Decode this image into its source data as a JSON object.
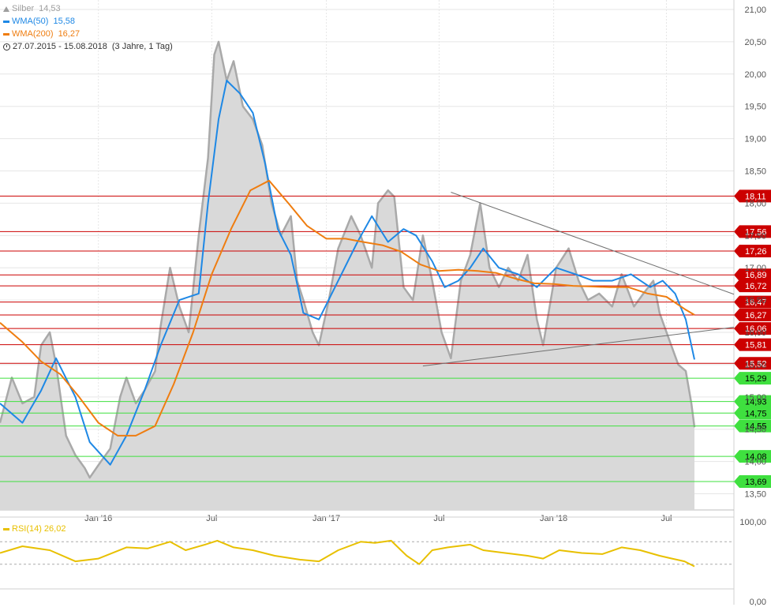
{
  "legend": {
    "instrument_name": "Silber",
    "instrument_value": "14,53",
    "wma50_label": "WMA(50)",
    "wma50_value": "15,58",
    "wma200_label": "WMA(200)",
    "wma200_value": "16,27",
    "range_text": "27.07.2015 - 15.08.2018",
    "range_detail": "(3 Jahre, 1 Tag)"
  },
  "rsi_legend": {
    "label": "RSI(14)",
    "value": "26,02"
  },
  "colors": {
    "price_fill": "#c9c9c9",
    "price_line": "#a9a9a9",
    "wma50": "#1e88e5",
    "wma200": "#ef7d10",
    "resistance": "#cc0000",
    "support": "#22cc22",
    "rsi": "#e8c000"
  },
  "icons": {
    "instrument": "triangle-icon",
    "range": "clock-icon"
  },
  "chart_data": {
    "type": "line",
    "ylim": [
      13.25,
      21.0
    ],
    "y_ticks": [
      "21,00",
      "20,50",
      "20,00",
      "19,50",
      "19,00",
      "18,50",
      "18,00",
      "17,50",
      "17,00",
      "16,50",
      "16,00",
      "15,50",
      "15,00",
      "14,50",
      "14,00",
      "13,50"
    ],
    "x_ticks": [
      "Jan '16",
      "Jul",
      "Jan '17",
      "Jul",
      "Jan '18",
      "Jul"
    ],
    "series": [
      {
        "name": "Silber",
        "style": "area",
        "x": [
          "2015-07-27",
          "2015-08-15",
          "2015-09-01",
          "2015-09-20",
          "2015-10-01",
          "2015-10-15",
          "2015-10-25",
          "2015-11-10",
          "2015-11-25",
          "2015-12-10",
          "2015-12-18",
          "2016-01-05",
          "2016-01-20",
          "2016-02-05",
          "2016-02-15",
          "2016-03-01",
          "2016-03-15",
          "2016-04-01",
          "2016-04-10",
          "2016-04-25",
          "2016-05-10",
          "2016-05-25",
          "2016-06-10",
          "2016-06-25",
          "2016-07-05",
          "2016-07-12",
          "2016-07-25",
          "2016-08-05",
          "2016-08-20",
          "2016-09-05",
          "2016-09-20",
          "2016-10-05",
          "2016-10-20",
          "2016-11-05",
          "2016-11-15",
          "2016-11-25",
          "2016-12-10",
          "2016-12-20",
          "2017-01-05",
          "2017-01-20",
          "2017-02-10",
          "2017-02-25",
          "2017-03-15",
          "2017-03-25",
          "2017-04-10",
          "2017-04-20",
          "2017-05-05",
          "2017-05-20",
          "2017-06-05",
          "2017-06-20",
          "2017-07-05",
          "2017-07-20",
          "2017-08-05",
          "2017-08-20",
          "2017-09-05",
          "2017-09-20",
          "2017-10-05",
          "2017-10-20",
          "2017-11-05",
          "2017-11-20",
          "2017-12-05",
          "2017-12-15",
          "2018-01-05",
          "2018-01-25",
          "2018-02-10",
          "2018-02-25",
          "2018-03-15",
          "2018-04-05",
          "2018-04-20",
          "2018-05-10",
          "2018-05-25",
          "2018-06-10",
          "2018-06-20",
          "2018-07-05",
          "2018-07-20",
          "2018-08-01",
          "2018-08-10",
          "2018-08-15"
        ],
        "values": [
          14.6,
          15.3,
          14.9,
          15.0,
          15.8,
          16.0,
          15.5,
          14.4,
          14.1,
          13.9,
          13.75,
          14.0,
          14.2,
          15.0,
          15.3,
          14.9,
          15.1,
          15.4,
          16.1,
          17.0,
          16.4,
          16.0,
          17.5,
          18.7,
          20.3,
          20.5,
          19.9,
          20.2,
          19.5,
          19.3,
          18.9,
          18.0,
          17.5,
          17.8,
          16.8,
          16.5,
          16.0,
          15.8,
          16.5,
          17.3,
          17.8,
          17.5,
          17.0,
          18.0,
          18.2,
          18.1,
          16.7,
          16.5,
          17.5,
          16.8,
          16.0,
          15.6,
          16.8,
          17.2,
          18.0,
          17.0,
          16.7,
          17.0,
          16.8,
          17.2,
          16.2,
          15.8,
          17.0,
          17.3,
          16.8,
          16.5,
          16.6,
          16.4,
          16.9,
          16.4,
          16.6,
          16.8,
          16.3,
          15.9,
          15.5,
          15.4,
          14.9,
          14.53
        ]
      },
      {
        "name": "WMA(50)",
        "style": "line",
        "x": [
          "2015-07-27",
          "2015-09-01",
          "2015-10-01",
          "2015-10-25",
          "2015-11-25",
          "2015-12-18",
          "2016-01-20",
          "2016-02-15",
          "2016-03-15",
          "2016-04-10",
          "2016-05-10",
          "2016-06-10",
          "2016-06-25",
          "2016-07-12",
          "2016-07-25",
          "2016-08-15",
          "2016-09-05",
          "2016-09-25",
          "2016-10-15",
          "2016-11-05",
          "2016-11-25",
          "2016-12-20",
          "2017-01-20",
          "2017-02-20",
          "2017-03-15",
          "2017-04-10",
          "2017-05-05",
          "2017-05-25",
          "2017-06-20",
          "2017-07-10",
          "2017-08-01",
          "2017-08-20",
          "2017-09-10",
          "2017-10-05",
          "2017-11-05",
          "2017-12-05",
          "2018-01-05",
          "2018-02-05",
          "2018-03-05",
          "2018-04-05",
          "2018-05-05",
          "2018-06-05",
          "2018-06-25",
          "2018-07-15",
          "2018-08-01",
          "2018-08-15"
        ],
        "values": [
          14.9,
          14.6,
          15.1,
          15.6,
          15.0,
          14.3,
          13.95,
          14.4,
          15.1,
          15.8,
          16.5,
          16.6,
          18.0,
          19.3,
          19.9,
          19.7,
          19.4,
          18.6,
          17.6,
          17.2,
          16.3,
          16.2,
          16.8,
          17.4,
          17.8,
          17.4,
          17.6,
          17.5,
          17.1,
          16.7,
          16.8,
          17.0,
          17.3,
          17.0,
          16.9,
          16.7,
          17.0,
          16.9,
          16.8,
          16.8,
          16.9,
          16.7,
          16.8,
          16.6,
          16.2,
          15.58
        ]
      },
      {
        "name": "WMA(200)",
        "style": "line",
        "x": [
          "2015-07-27",
          "2015-09-01",
          "2015-10-01",
          "2015-11-01",
          "2015-12-01",
          "2016-01-01",
          "2016-02-01",
          "2016-03-01",
          "2016-04-01",
          "2016-05-01",
          "2016-06-01",
          "2016-07-01",
          "2016-08-01",
          "2016-09-01",
          "2016-10-01",
          "2016-11-01",
          "2016-12-01",
          "2017-01-01",
          "2017-02-01",
          "2017-03-01",
          "2017-04-01",
          "2017-05-01",
          "2017-06-01",
          "2017-07-01",
          "2017-08-01",
          "2017-09-01",
          "2017-10-01",
          "2017-11-01",
          "2017-12-01",
          "2018-01-01",
          "2018-02-01",
          "2018-03-01",
          "2018-04-01",
          "2018-05-01",
          "2018-06-01",
          "2018-07-01",
          "2018-08-01",
          "2018-08-15"
        ],
        "values": [
          16.15,
          15.85,
          15.55,
          15.35,
          15.0,
          14.6,
          14.4,
          14.4,
          14.55,
          15.2,
          16.0,
          16.9,
          17.6,
          18.2,
          18.35,
          18.0,
          17.65,
          17.45,
          17.45,
          17.4,
          17.35,
          17.25,
          17.05,
          16.95,
          16.97,
          16.95,
          16.92,
          16.83,
          16.76,
          16.75,
          16.72,
          16.71,
          16.7,
          16.7,
          16.6,
          16.55,
          16.35,
          16.27
        ]
      }
    ],
    "levels": {
      "resistance": [
        "18,11",
        "17,56",
        "17,26",
        "16,89",
        "16,72",
        "16,47",
        "16,27",
        "16,06",
        "15,81",
        "15,52"
      ],
      "support": [
        "15,29",
        "14,93",
        "14,75",
        "14,55",
        "14,08",
        "13,69"
      ]
    },
    "level_values": {
      "resistance": [
        18.11,
        17.56,
        17.26,
        16.89,
        16.72,
        16.47,
        16.27,
        16.06,
        15.81,
        15.52
      ],
      "support": [
        15.29,
        14.93,
        14.75,
        14.55,
        14.08,
        13.69
      ]
    },
    "trendlines": [
      {
        "x": [
          "2017-07-20",
          "2018-08-15"
        ],
        "values": [
          18.17,
          16.59
        ]
      },
      {
        "x": [
          "2017-06-05",
          "2018-08-15"
        ],
        "values": [
          15.48,
          16.08
        ]
      }
    ],
    "rsi": {
      "ylim": [
        0,
        100
      ],
      "y_ticks": [
        "100,00",
        "0,00"
      ],
      "x": [
        "2015-07-27",
        "2015-09-01",
        "2015-10-15",
        "2015-11-25",
        "2016-01-01",
        "2016-02-15",
        "2016-03-20",
        "2016-04-25",
        "2016-05-20",
        "2016-06-20",
        "2016-07-10",
        "2016-08-05",
        "2016-09-05",
        "2016-10-10",
        "2016-11-20",
        "2016-12-20",
        "2017-01-20",
        "2017-02-25",
        "2017-03-20",
        "2017-04-15",
        "2017-05-10",
        "2017-05-30",
        "2017-06-20",
        "2017-07-15",
        "2017-08-20",
        "2017-09-10",
        "2017-10-15",
        "2017-11-20",
        "2017-12-15",
        "2018-01-10",
        "2018-02-15",
        "2018-03-20",
        "2018-04-20",
        "2018-05-20",
        "2018-06-20",
        "2018-07-10",
        "2018-07-30",
        "2018-08-15"
      ],
      "values": [
        50,
        62,
        55,
        35,
        40,
        60,
        58,
        70,
        55,
        65,
        72,
        60,
        55,
        45,
        38,
        35,
        55,
        70,
        68,
        72,
        45,
        30,
        55,
        60,
        65,
        55,
        50,
        45,
        40,
        55,
        50,
        48,
        60,
        55,
        45,
        40,
        35,
        26.02
      ]
    }
  }
}
